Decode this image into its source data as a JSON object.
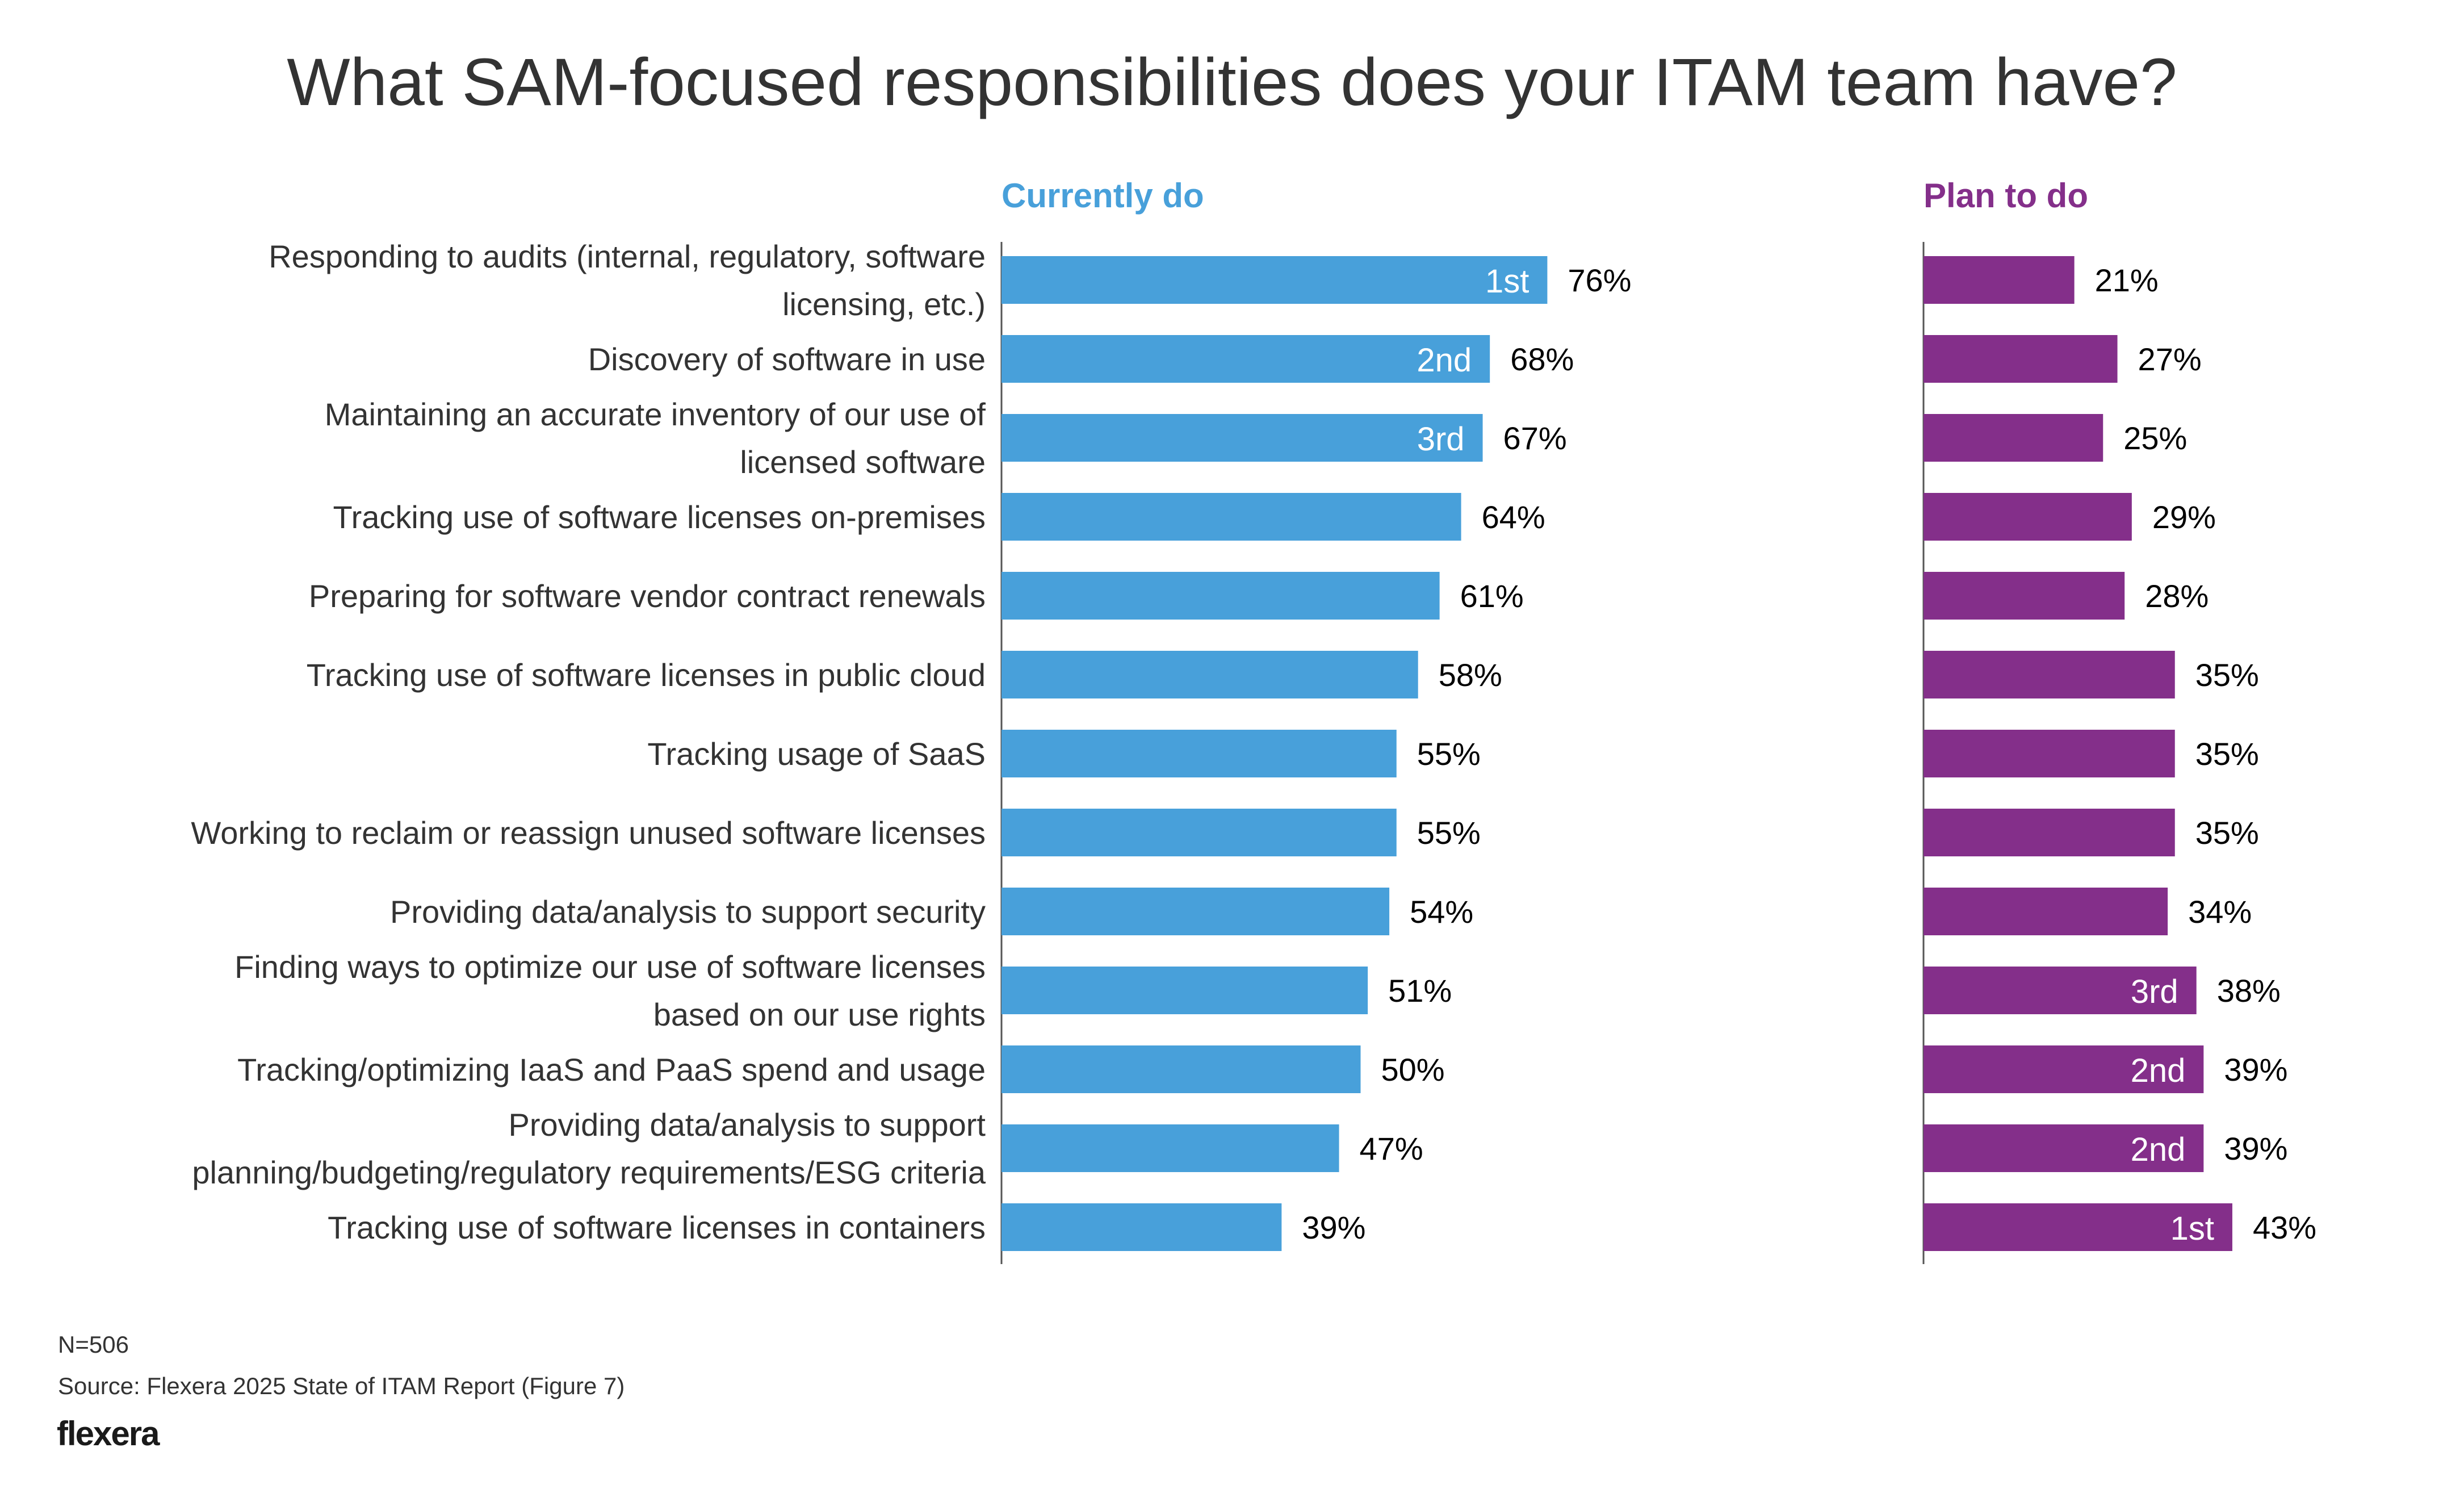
{
  "chart_data": {
    "type": "bar",
    "orientation": "horizontal",
    "title": "What SAM-focused responsibilities does your ITAM team have?",
    "categories": [
      [
        "Responding to audits (internal, regulatory, software",
        "licensing, etc.)"
      ],
      [
        "Discovery of software in use"
      ],
      [
        "Maintaining an accurate inventory of our use of",
        "licensed software"
      ],
      [
        "Tracking use of software licenses on-premises"
      ],
      [
        "Preparing for software vendor contract renewals"
      ],
      [
        "Tracking use of software licenses in public cloud"
      ],
      [
        "Tracking usage of SaaS"
      ],
      [
        "Working to reclaim or reassign unused software licenses"
      ],
      [
        "Providing data/analysis to support security"
      ],
      [
        "Finding ways to optimize our use of software licenses",
        "based on our use rights"
      ],
      [
        "Tracking/optimizing IaaS and PaaS spend and usage"
      ],
      [
        "Providing data/analysis to support",
        "planning/budgeting/regulatory requirements/ESG criteria"
      ],
      [
        "Tracking use of software licenses in containers"
      ]
    ],
    "series": [
      {
        "name": "Currently do",
        "color": "#48A0DA",
        "values": [
          76,
          68,
          67,
          64,
          61,
          58,
          55,
          55,
          54,
          51,
          50,
          47,
          39
        ],
        "value_labels": [
          "76%",
          "68%",
          "67%",
          "64%",
          "61%",
          "58%",
          "55%",
          "55%",
          "54%",
          "51%",
          "50%",
          "47%",
          "39%"
        ],
        "ranks": [
          "1st",
          "2nd",
          "3rd",
          "",
          "",
          "",
          "",
          "",
          "",
          "",
          "",
          "",
          ""
        ]
      },
      {
        "name": "Plan to do",
        "color": "#842F8A",
        "values": [
          21,
          27,
          25,
          29,
          28,
          35,
          35,
          35,
          34,
          38,
          39,
          39,
          43
        ],
        "value_labels": [
          "21%",
          "27%",
          "25%",
          "29%",
          "28%",
          "35%",
          "35%",
          "35%",
          "34%",
          "38%",
          "39%",
          "39%",
          "43%"
        ],
        "ranks": [
          "",
          "",
          "",
          "",
          "",
          "",
          "",
          "",
          "",
          "3rd",
          "2nd",
          "2nd",
          "1st"
        ]
      }
    ],
    "unit": "%",
    "xlim": [
      0,
      100
    ],
    "grid": false,
    "legend": "column headers above each panel"
  },
  "footer": {
    "n": "N=506",
    "source": "Source: Flexera 2025 State of ITAM Report (Figure 7)",
    "logo": "flexera"
  }
}
